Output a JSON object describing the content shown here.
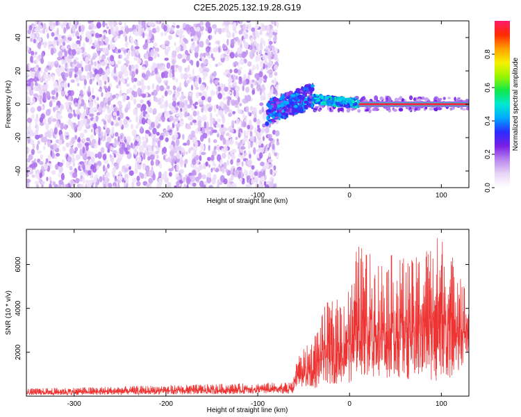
{
  "title": "C2E5.2025.132.19.28.G19",
  "chart_data": [
    {
      "type": "heatmap",
      "xlabel": "Height of straight line (km)",
      "ylabel": "Frequency (Hz)",
      "xlim": [
        -352,
        130
      ],
      "ylim": [
        -50,
        50
      ],
      "x_ticks": [
        -300,
        -200,
        -100,
        0,
        100
      ],
      "y_ticks": [
        -40,
        -20,
        0,
        20,
        40
      ],
      "colorbar": {
        "label": "Normalized spectral amplitude",
        "range": [
          0,
          1
        ],
        "ticks": [
          0.0,
          0.2,
          0.4,
          0.6,
          0.8
        ],
        "colors": [
          "#ffffff",
          "#e8d6f7",
          "#b987ee",
          "#7a1fe6",
          "#2a2cff",
          "#00a7ff",
          "#00e8d0",
          "#11e84a",
          "#9af500",
          "#f7f000",
          "#ffa000",
          "#ff2a00",
          "#ff1a6a"
        ]
      },
      "regions": [
        {
          "name": "noise",
          "x_range": [
            -352,
            -78
          ],
          "y_range": [
            -50,
            50
          ],
          "amplitude_range": [
            0.05,
            0.2
          ]
        },
        {
          "name": "transition",
          "x_range": [
            -90,
            -40
          ],
          "y_center": [
            -5,
            5
          ],
          "amplitude_range": [
            0.2,
            0.45
          ]
        },
        {
          "name": "carrier",
          "x_range": [
            10,
            130
          ],
          "y_center": 0,
          "amplitude_range": [
            0.85,
            1.0
          ]
        }
      ]
    },
    {
      "type": "line",
      "xlabel": "Height of straight line (km)",
      "ylabel": "SNR (10 * v/v)",
      "xlim": [
        -352,
        130
      ],
      "ylim": [
        0,
        7600
      ],
      "x_ticks": [
        -300,
        -200,
        -100,
        0,
        100
      ],
      "y_ticks": [
        2000,
        4000,
        6000
      ],
      "color": "#ee3333",
      "envelope": [
        {
          "x": -352,
          "low": 50,
          "high": 350
        },
        {
          "x": -300,
          "low": 50,
          "high": 400
        },
        {
          "x": -200,
          "low": 70,
          "high": 500
        },
        {
          "x": -100,
          "low": 100,
          "high": 600
        },
        {
          "x": -62,
          "low": 120,
          "high": 650
        },
        {
          "x": -58,
          "low": 400,
          "high": 1800
        },
        {
          "x": -40,
          "low": 300,
          "high": 2600
        },
        {
          "x": -25,
          "low": 500,
          "high": 4300
        },
        {
          "x": -10,
          "low": 600,
          "high": 4500
        },
        {
          "x": 5,
          "low": 600,
          "high": 5500
        },
        {
          "x": 8,
          "low": 1000,
          "high": 7000
        },
        {
          "x": 30,
          "low": 800,
          "high": 6300
        },
        {
          "x": 50,
          "low": 800,
          "high": 6500
        },
        {
          "x": 70,
          "low": 700,
          "high": 6200
        },
        {
          "x": 80,
          "low": 800,
          "high": 6800
        },
        {
          "x": 100,
          "low": 600,
          "high": 7500
        },
        {
          "x": 110,
          "low": 800,
          "high": 6300
        },
        {
          "x": 118,
          "low": 1000,
          "high": 6800
        },
        {
          "x": 130,
          "low": 2000,
          "high": 4000
        }
      ]
    }
  ]
}
